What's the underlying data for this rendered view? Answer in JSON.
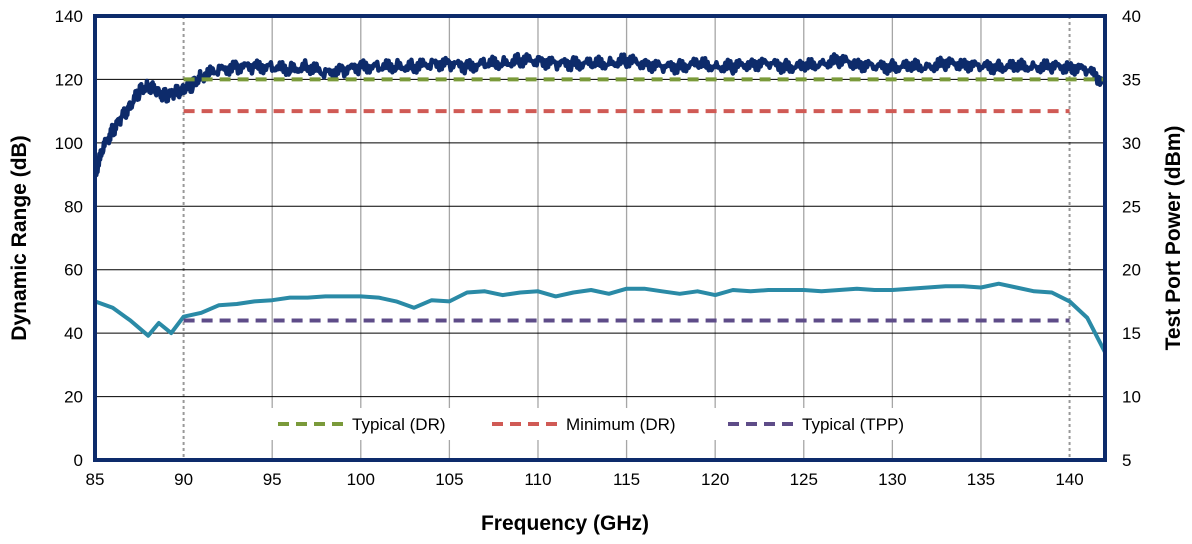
{
  "chart_data": {
    "type": "line",
    "xlabel": "Frequency (GHz)",
    "ylabel": "Dynamic Range (dB)",
    "y2label": "Test Port Power (dBm)",
    "xlim": [
      85,
      142
    ],
    "ylim": [
      0,
      140
    ],
    "y2lim": [
      5,
      40
    ],
    "x_ticks": [
      "85",
      "90",
      "95",
      "100",
      "105",
      "110",
      "115",
      "120",
      "125",
      "130",
      "135",
      "140"
    ],
    "y_ticks": [
      "0",
      "20",
      "40",
      "60",
      "80",
      "100",
      "120",
      "140"
    ],
    "y2_ticks": [
      "5",
      "10",
      "15",
      "20",
      "25",
      "30",
      "35",
      "40"
    ],
    "grid": "vertical",
    "legend_position": "bottom-center",
    "series": [
      {
        "name": "",
        "axis": "left",
        "color": "#0d2b6b",
        "x": [
          85,
          85.5,
          86,
          86.5,
          87,
          87.5,
          88,
          88.5,
          89,
          89.5,
          90,
          90.5,
          91,
          92,
          93,
          94,
          95,
          96,
          97,
          98,
          99,
          100,
          101,
          102,
          103,
          104,
          105,
          106,
          107,
          108,
          109,
          110,
          111,
          112,
          113,
          114,
          115,
          116,
          117,
          118,
          119,
          120,
          121,
          122,
          123,
          124,
          125,
          126,
          127,
          128,
          129,
          130,
          131,
          132,
          133,
          134,
          135,
          136,
          137,
          138,
          139,
          140,
          141,
          142
        ],
        "values": [
          90,
          99,
          104,
          108,
          112,
          116,
          118,
          116,
          115,
          116,
          117,
          118,
          121,
          123,
          124,
          124,
          124,
          123,
          124,
          122,
          123,
          124,
          124,
          124,
          124,
          125,
          125,
          124,
          125,
          125,
          126,
          126,
          125,
          125,
          125,
          125,
          126,
          125,
          124,
          124,
          125,
          124,
          124,
          125,
          125,
          124,
          124,
          125,
          126,
          125,
          124,
          124,
          124,
          124,
          125,
          125,
          124,
          124,
          124,
          124,
          124,
          124,
          123,
          119
        ]
      },
      {
        "name": "",
        "axis": "right",
        "color": "#2a8aa6",
        "x": [
          85,
          86,
          87,
          88,
          88.6,
          89.3,
          90,
          91,
          92,
          93,
          94,
          95,
          96,
          97,
          98,
          99,
          100,
          101,
          102,
          103,
          104,
          105,
          106,
          107,
          108,
          109,
          110,
          111,
          112,
          113,
          114,
          115,
          116,
          117,
          118,
          119,
          120,
          121,
          122,
          123,
          124,
          125,
          126,
          127,
          128,
          129,
          130,
          131,
          132,
          133,
          134,
          135,
          136,
          137,
          138,
          139,
          140,
          141,
          142
        ],
        "values": [
          17.5,
          17.0,
          16.0,
          14.8,
          15.8,
          15.0,
          16.3,
          16.6,
          17.2,
          17.3,
          17.5,
          17.6,
          17.8,
          17.8,
          17.9,
          17.9,
          17.9,
          17.8,
          17.5,
          17.0,
          17.6,
          17.5,
          18.2,
          18.3,
          18.0,
          18.2,
          18.3,
          17.9,
          18.2,
          18.4,
          18.1,
          18.5,
          18.5,
          18.3,
          18.1,
          18.3,
          18.0,
          18.4,
          18.3,
          18.4,
          18.4,
          18.4,
          18.3,
          18.4,
          18.5,
          18.4,
          18.4,
          18.5,
          18.6,
          18.7,
          18.7,
          18.6,
          18.9,
          18.6,
          18.3,
          18.2,
          17.5,
          16.2,
          13.5
        ]
      },
      {
        "name": "Typical (DR)",
        "axis": "left",
        "style": "dashed",
        "color": "#7a9a3a",
        "x": [
          90,
          142
        ],
        "values": [
          120,
          120
        ]
      },
      {
        "name": "Minimum (DR)",
        "axis": "left",
        "style": "dashed",
        "color": "#d05a55",
        "x": [
          90,
          140
        ],
        "values": [
          110,
          110
        ]
      },
      {
        "name": "Typical (TPP)",
        "axis": "right",
        "style": "dashed",
        "color": "#5e4c88",
        "x": [
          90,
          140
        ],
        "values": [
          16,
          16
        ]
      }
    ]
  }
}
